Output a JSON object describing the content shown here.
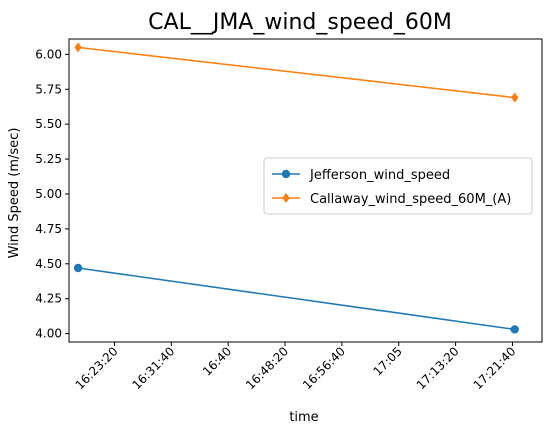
{
  "chart_data": {
    "type": "line",
    "title": "CAL__JMA_wind_speed_60M",
    "xlabel": "time",
    "ylabel": "Wind Speed (m/sec)",
    "x_ticks": [
      "16:23:20",
      "16:31:40",
      "16:40",
      "16:48:20",
      "16:56:40",
      "17:05",
      "17:13:20",
      "17:21:40"
    ],
    "x_ticks_seconds": [
      59000,
      59500,
      60000,
      60500,
      61000,
      61500,
      62000,
      62500
    ],
    "xlim_seconds": [
      58600,
      62760
    ],
    "y_ticks": [
      "4.00",
      "4.25",
      "4.50",
      "4.75",
      "5.00",
      "5.25",
      "5.50",
      "5.75",
      "6.00"
    ],
    "y_tick_values": [
      4.0,
      4.25,
      4.5,
      4.75,
      5.0,
      5.25,
      5.5,
      5.75,
      6.0
    ],
    "ylim": [
      3.94,
      6.11
    ],
    "grid": false,
    "legend_position": "center-right",
    "series": [
      {
        "name": "Jefferson_wind_speed",
        "color": "#1f77b4",
        "marker": "circle",
        "x": [
          "16:18",
          "17:22"
        ],
        "x_seconds": [
          58680,
          62520
        ],
        "y": [
          4.47,
          4.03
        ]
      },
      {
        "name": "Callaway_wind_speed_60M_(A)",
        "color": "#ff7f0e",
        "marker": "diamond",
        "x": [
          "16:18",
          "17:22"
        ],
        "x_seconds": [
          58680,
          62520
        ],
        "y": [
          6.05,
          5.69
        ]
      }
    ]
  }
}
